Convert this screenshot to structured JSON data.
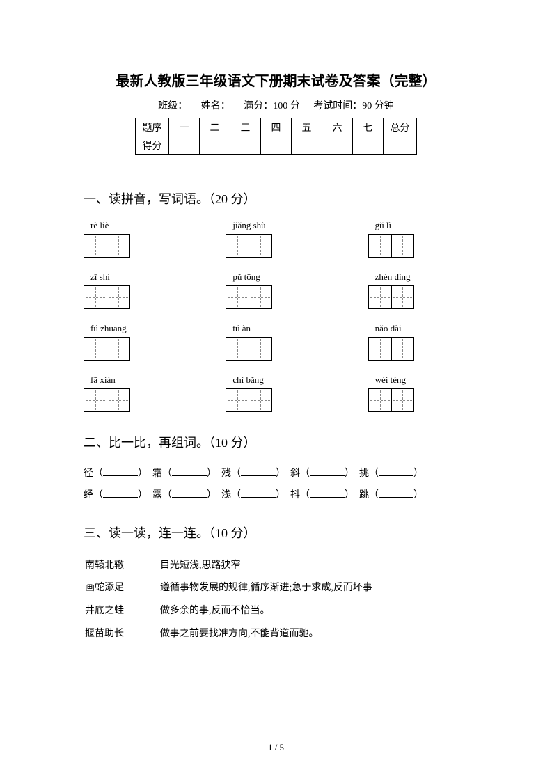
{
  "title": "最新人教版三年级语文下册期末试卷及答案（完整）",
  "info": {
    "class_label": "班级：",
    "name_label": "姓名：",
    "full_score_label": "满分：100 分",
    "time_label": "考试时间：90 分钟"
  },
  "score_table": {
    "row1": [
      "题序",
      "一",
      "二",
      "三",
      "四",
      "五",
      "六",
      "七",
      "总分"
    ],
    "row2_label": "得分"
  },
  "section1": {
    "title": "一、读拼音，写词语。（20 分）",
    "items": [
      {
        "pinyin": "rè liè"
      },
      {
        "pinyin": "jiǎng shù"
      },
      {
        "pinyin": "gǔ   lì"
      },
      {
        "pinyin": "zī shì"
      },
      {
        "pinyin": "pǔ tōng"
      },
      {
        "pinyin": "zhèn dìng"
      },
      {
        "pinyin": "fú zhuāng"
      },
      {
        "pinyin": "tú   àn"
      },
      {
        "pinyin": "nǎo dài"
      },
      {
        "pinyin": "fā xiàn"
      },
      {
        "pinyin": "chì bǎng"
      },
      {
        "pinyin": "wèi téng"
      }
    ]
  },
  "section2": {
    "title": "二、比一比，再组词。（10 分）",
    "line1": [
      "径（",
      "）　霜（",
      "）　残（",
      "）　斜（",
      "）　挑（",
      "）"
    ],
    "line2": [
      "经（",
      "）　露（",
      "）　浅（",
      "）　抖（",
      "）　跳（",
      "）"
    ]
  },
  "section3": {
    "title": "三、读一读，连一连。（10 分）",
    "pairs": [
      {
        "left": "南辕北辙",
        "right": "目光短浅,思路狭窄"
      },
      {
        "left": "画蛇添足",
        "right": "遵循事物发展的规律,循序渐进;急于求成,反而坏事"
      },
      {
        "left": "井底之蛙",
        "right": "做多余的事,反而不恰当。"
      },
      {
        "left": "揠苗助长",
        "right": "做事之前要找准方向,不能背道而驰。"
      }
    ]
  },
  "page_number": "1 / 5"
}
